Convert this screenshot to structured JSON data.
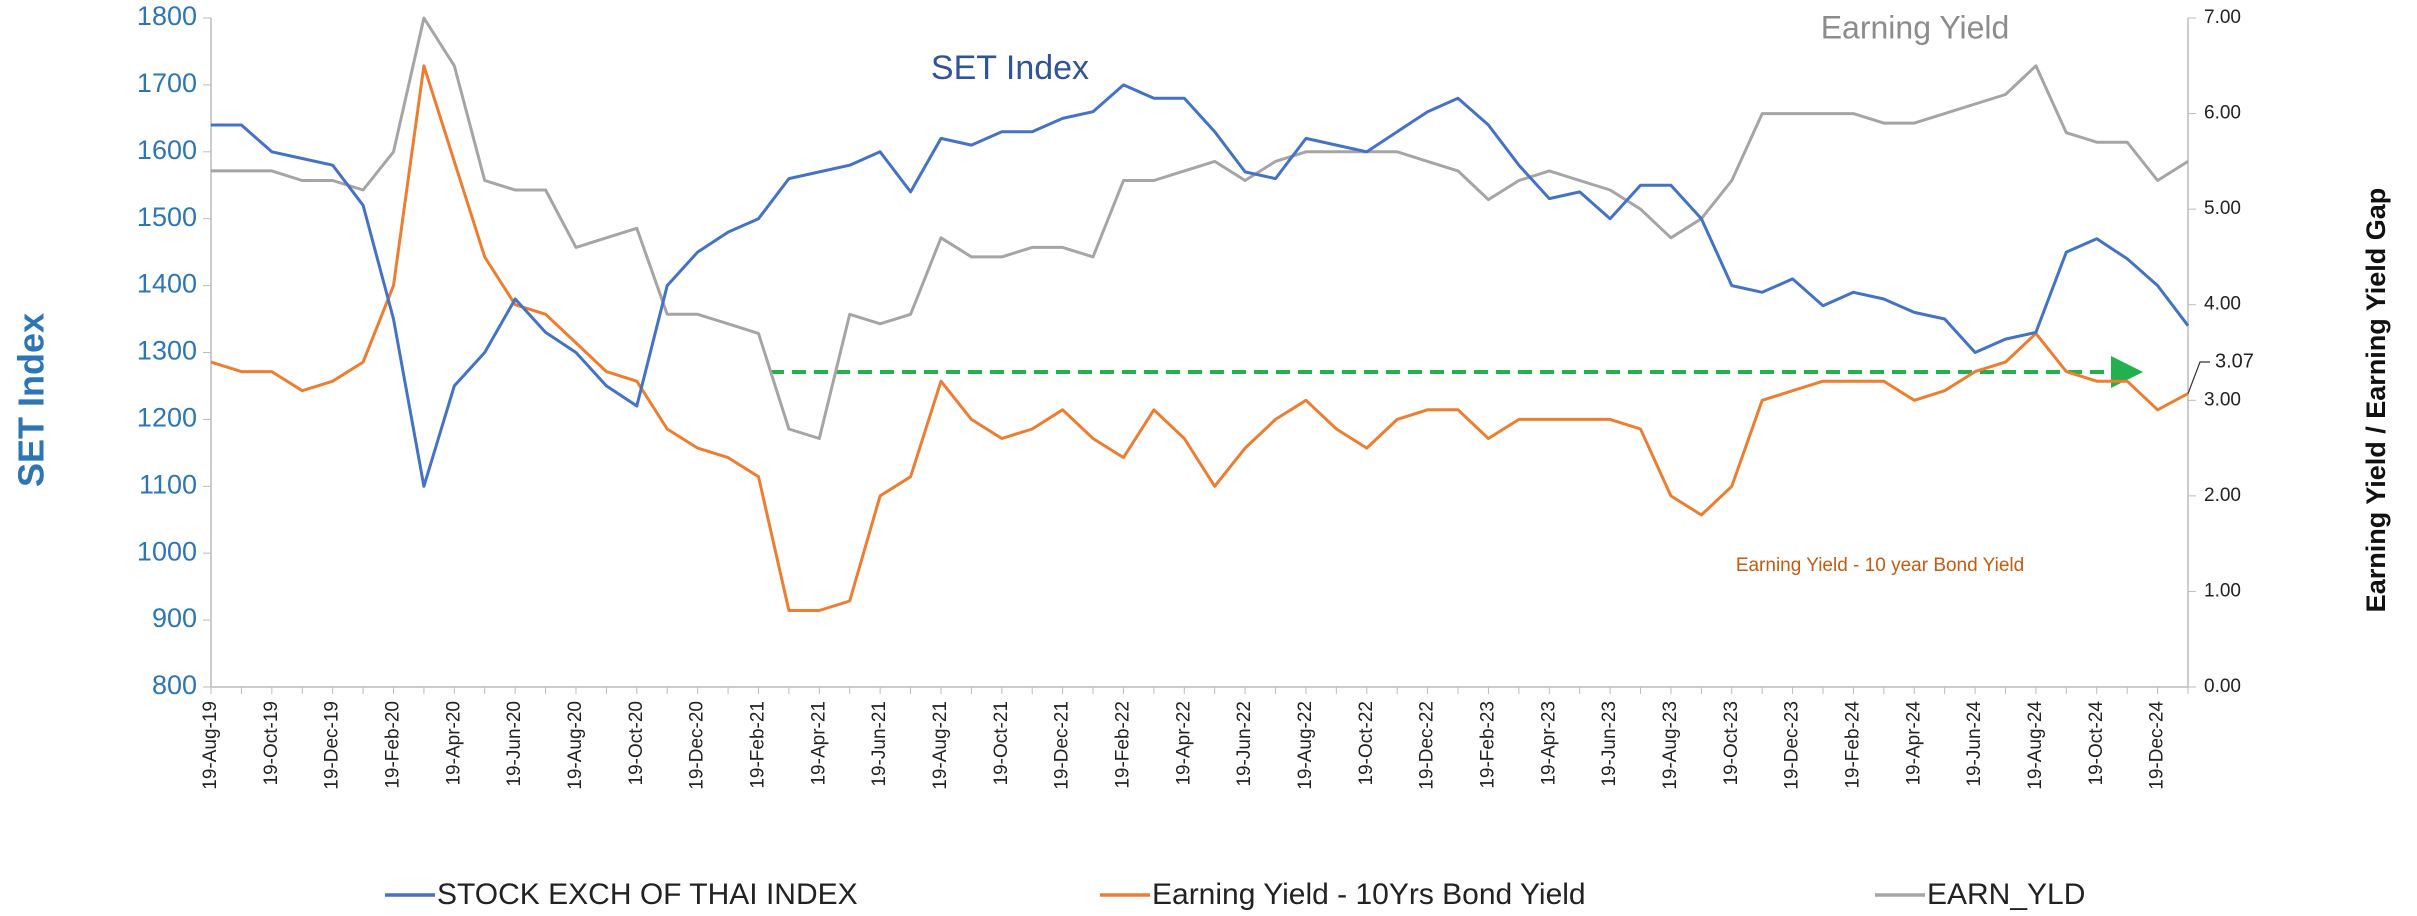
{
  "chart_data": {
    "type": "line",
    "y_label": "SET Index",
    "y2_label": "Earning Yield  / Earning Yield Gap",
    "annotations": [
      "SET Index",
      "Earning Yield",
      "Earning Yield -  10 year Bond Yield",
      "3.07"
    ],
    "categories": [
      "19-Aug-19",
      null,
      "19-Oct-19",
      null,
      "19-Dec-19",
      null,
      "19-Feb-20",
      null,
      "19-Apr-20",
      null,
      "19-Jun-20",
      null,
      "19-Aug-20",
      null,
      "19-Oct-20",
      null,
      "19-Dec-20",
      null,
      "19-Feb-21",
      null,
      "19-Apr-21",
      null,
      "19-Jun-21",
      null,
      "19-Aug-21",
      null,
      "19-Oct-21",
      null,
      "19-Dec-21",
      null,
      "19-Feb-22",
      null,
      "19-Apr-22",
      null,
      "19-Jun-22",
      null,
      "19-Aug-22",
      null,
      "19-Oct-22",
      null,
      "19-Dec-22",
      null,
      "19-Feb-23",
      null,
      "19-Apr-23",
      null,
      "19-Jun-23",
      null,
      "19-Aug-23",
      null,
      "19-Oct-23",
      null,
      "19-Dec-23",
      null,
      "19-Feb-24",
      null,
      "19-Apr-24",
      null,
      "19-Jun-24",
      null,
      "19-Aug-24",
      null,
      "19-Oct-24",
      null,
      "19-Dec-24",
      null
    ],
    "series": [
      {
        "name": "STOCK EXCH OF THAI INDEX",
        "color": "#4472c4",
        "values": [
          1640,
          1640,
          1600,
          1590,
          1580,
          1520,
          1350,
          1100,
          1250,
          1300,
          1380,
          1330,
          1300,
          1250,
          1220,
          1400,
          1450,
          1480,
          1500,
          1560,
          1570,
          1580,
          1600,
          1540,
          1620,
          1610,
          1630,
          1630,
          1650,
          1660,
          1700,
          1680,
          1680,
          1630,
          1570,
          1560,
          1620,
          1610,
          1600,
          1630,
          1660,
          1680,
          1640,
          1580,
          1530,
          1540,
          1500,
          1550,
          1550,
          1500,
          1400,
          1390,
          1410,
          1370,
          1390,
          1380,
          1360,
          1350,
          1300,
          1320,
          1330,
          1450,
          1470,
          1440,
          1400,
          1340
        ]
      },
      {
        "name": "Earning Yield - 10Yrs Bond Yield",
        "color": "#ed7d31",
        "axis": "y2",
        "values": [
          3.4,
          3.3,
          3.3,
          3.1,
          3.2,
          3.4,
          4.2,
          6.5,
          5.5,
          4.5,
          4.0,
          3.9,
          3.6,
          3.3,
          3.2,
          2.7,
          2.5,
          2.4,
          2.2,
          0.8,
          0.8,
          0.9,
          2.0,
          2.2,
          3.2,
          2.8,
          2.6,
          2.7,
          2.9,
          2.6,
          2.4,
          2.9,
          2.6,
          2.1,
          2.5,
          2.8,
          3.0,
          2.7,
          2.5,
          2.8,
          2.9,
          2.9,
          2.6,
          2.8,
          2.8,
          2.8,
          2.8,
          2.7,
          2.0,
          1.8,
          2.1,
          3.0,
          3.1,
          3.2,
          3.2,
          3.2,
          3.0,
          3.1,
          3.3,
          3.4,
          3.7,
          3.3,
          3.2,
          3.2,
          2.9,
          3.07
        ]
      },
      {
        "name": "EARN_YLD",
        "color": "#a5a5a5",
        "axis": "y2",
        "values": [
          5.4,
          5.4,
          5.4,
          5.3,
          5.3,
          5.2,
          5.6,
          7.0,
          6.5,
          5.3,
          5.2,
          5.2,
          4.6,
          4.7,
          4.8,
          3.9,
          3.9,
          3.8,
          3.7,
          2.7,
          2.6,
          3.9,
          3.8,
          3.9,
          4.7,
          4.5,
          4.5,
          4.6,
          4.6,
          4.5,
          5.3,
          5.3,
          5.4,
          5.5,
          5.3,
          5.5,
          5.6,
          5.6,
          5.6,
          5.6,
          5.5,
          5.4,
          5.1,
          5.3,
          5.4,
          5.3,
          5.2,
          5.0,
          4.7,
          4.9,
          5.3,
          6.0,
          6.0,
          6.0,
          6.0,
          5.9,
          5.9,
          6.0,
          6.1,
          6.2,
          6.5,
          5.8,
          5.7,
          5.7,
          5.3,
          5.5
        ]
      }
    ],
    "ylim": [
      800,
      1800
    ],
    "yticks": [
      800,
      900,
      1000,
      1100,
      1200,
      1300,
      1400,
      1500,
      1600,
      1700,
      1800
    ],
    "y2lim": [
      0,
      7
    ],
    "y2ticks": [
      {
        "value": 0,
        "label": "0.00"
      },
      {
        "value": 1,
        "label": "1.00"
      },
      {
        "value": 2,
        "label": "2.00"
      },
      {
        "value": 3,
        "label": "3.00"
      },
      {
        "value": 4,
        "label": "4.00"
      },
      {
        "value": 5,
        "label": "5.00"
      },
      {
        "value": 6,
        "label": "6.00"
      },
      {
        "value": 7,
        "label": "7.00"
      }
    ],
    "legend": "bottom",
    "grid": false
  }
}
